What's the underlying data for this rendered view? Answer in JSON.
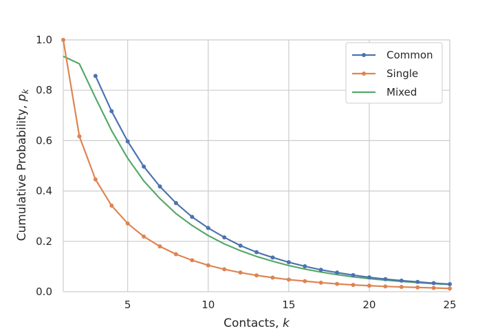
{
  "chart_data": {
    "type": "line",
    "xlabel": "Contacts, ",
    "xlabel_var": "k",
    "ylabel": "Cumulative Probability, ",
    "ylabel_var": "p",
    "ylabel_sub": "k",
    "xlim": [
      1,
      25
    ],
    "ylim": [
      0.0,
      1.0
    ],
    "xticks": [
      5,
      10,
      15,
      20,
      25
    ],
    "yticks": [
      0.0,
      0.2,
      0.4,
      0.6,
      0.8,
      1.0
    ],
    "ytick_labels": [
      "0.0",
      "0.2",
      "0.4",
      "0.6",
      "0.8",
      "1.0"
    ],
    "grid": true,
    "legend_position": "top-right",
    "series": [
      {
        "name": "Common",
        "color": "#4c72b0",
        "marker": true,
        "x": [
          3,
          4,
          5,
          6,
          7,
          8,
          9,
          10,
          11,
          12,
          13,
          14,
          15,
          16,
          17,
          18,
          19,
          20,
          21,
          22,
          23,
          24,
          25
        ],
        "y": [
          0.857,
          0.717,
          0.597,
          0.497,
          0.418,
          0.352,
          0.297,
          0.253,
          0.216,
          0.183,
          0.157,
          0.136,
          0.117,
          0.101,
          0.087,
          0.076,
          0.066,
          0.057,
          0.05,
          0.044,
          0.039,
          0.034,
          0.03
        ]
      },
      {
        "name": "Single",
        "color": "#dd8452",
        "marker": true,
        "x": [
          1,
          2,
          3,
          4,
          5,
          6,
          7,
          8,
          9,
          10,
          11,
          12,
          13,
          14,
          15,
          16,
          17,
          18,
          19,
          20,
          21,
          22,
          23,
          24,
          25
        ],
        "y": [
          1.0,
          0.617,
          0.446,
          0.342,
          0.271,
          0.219,
          0.18,
          0.149,
          0.125,
          0.105,
          0.089,
          0.076,
          0.065,
          0.056,
          0.048,
          0.042,
          0.036,
          0.031,
          0.027,
          0.024,
          0.021,
          0.019,
          0.017,
          0.015,
          0.013
        ]
      },
      {
        "name": "Mixed",
        "color": "#55a868",
        "marker": false,
        "x": [
          1,
          2,
          3,
          4,
          5,
          6,
          7,
          8,
          9,
          10,
          11,
          12,
          13,
          14,
          15,
          16,
          17,
          18,
          19,
          20,
          21,
          22,
          23,
          24,
          25
        ],
        "y": [
          0.935,
          0.905,
          0.77,
          0.64,
          0.53,
          0.44,
          0.37,
          0.31,
          0.263,
          0.223,
          0.19,
          0.163,
          0.14,
          0.121,
          0.104,
          0.09,
          0.078,
          0.068,
          0.059,
          0.052,
          0.046,
          0.041,
          0.036,
          0.032,
          0.029
        ]
      }
    ]
  }
}
